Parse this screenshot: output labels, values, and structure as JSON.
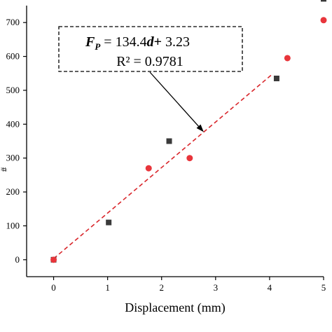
{
  "chart_data": {
    "type": "scatter",
    "xlabel": "Displacement (mm)",
    "ylabel_visible": "#",
    "xlim": [
      -0.5,
      5
    ],
    "ylim": [
      -50,
      750
    ],
    "x_ticks": [
      0,
      1,
      2,
      3,
      4,
      5
    ],
    "y_ticks": [
      0,
      100,
      200,
      300,
      400,
      500,
      600,
      700
    ],
    "grid": false,
    "series": [
      {
        "marker": "square",
        "color": "#3a3a3a",
        "points": [
          {
            "x": 0,
            "y": 0
          },
          {
            "x": 1.02,
            "y": 110
          },
          {
            "x": 2.14,
            "y": 350
          },
          {
            "x": 4.13,
            "y": 535
          },
          {
            "x": 5.0,
            "y": 770
          }
        ]
      },
      {
        "marker": "circle",
        "color": "#e8353b",
        "points": [
          {
            "x": 0,
            "y": 0
          },
          {
            "x": 1.76,
            "y": 270
          },
          {
            "x": 2.52,
            "y": 300
          },
          {
            "x": 4.33,
            "y": 595
          },
          {
            "x": 5.0,
            "y": 707
          }
        ]
      }
    ],
    "fit_line": {
      "style": "dashed",
      "color": "#d9262b",
      "x_range": [
        0,
        4.05
      ],
      "slope": 134.4,
      "intercept": 3.23
    },
    "annotation": {
      "equation_parts": [
        "F",
        "P",
        " = 134.4",
        "d",
        "+",
        " 3.23"
      ],
      "r_squared_text": "R² = 0.9781",
      "arrow_target": {
        "x": 2.78,
        "y": 377
      }
    }
  }
}
